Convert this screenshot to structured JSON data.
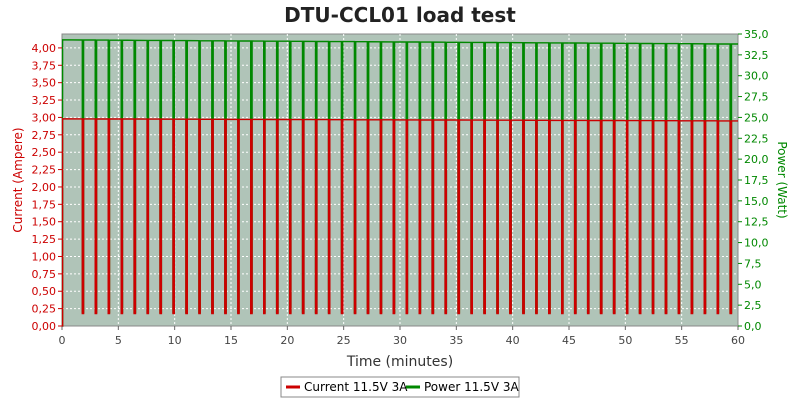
{
  "chart_data": {
    "type": "line",
    "title": "DTU-CCL01 load test",
    "xlabel": "Time (minutes)",
    "ylabel_left": "Current (Ampere)",
    "ylabel_right": "Power (Watt)",
    "xlim": [
      0,
      60
    ],
    "ylim_left": [
      0,
      4.2
    ],
    "ylim_right": [
      0,
      35
    ],
    "x_ticks": [
      "0",
      "5",
      "10",
      "15",
      "20",
      "25",
      "30",
      "35",
      "40",
      "45",
      "50",
      "55",
      "60"
    ],
    "y_left_ticks": [
      "0,00",
      "0,25",
      "0,50",
      "0,75",
      "1,00",
      "1,25",
      "1,50",
      "1,75",
      "2,00",
      "2,25",
      "2,50",
      "2,75",
      "3,00",
      "3,25",
      "3,50",
      "3,75",
      "4,00"
    ],
    "y_right_ticks": [
      "0,0",
      "2,5",
      "5,0",
      "7,5",
      "10,0",
      "12,5",
      "15,0",
      "17,5",
      "20,0",
      "22,5",
      "25,0",
      "27,5",
      "30,0",
      "32,5",
      "35,0"
    ],
    "grid": true,
    "legend_position": "bottom",
    "pulse_pattern": {
      "first_drop_minute": 1.8,
      "period_minutes": 1.15,
      "low_duration_minutes": 1.0
    },
    "series": [
      {
        "name": "Current 11.5V 3A",
        "axis": "left",
        "color": "#cc0000",
        "unit": "A",
        "high_start": 2.98,
        "high_end": 2.95,
        "low": 0.18
      },
      {
        "name": "Power 11.5V 3A",
        "axis": "right",
        "color": "#008800",
        "unit": "W",
        "high_start": 34.3,
        "high_end": 33.8,
        "low": 1.6
      }
    ]
  }
}
